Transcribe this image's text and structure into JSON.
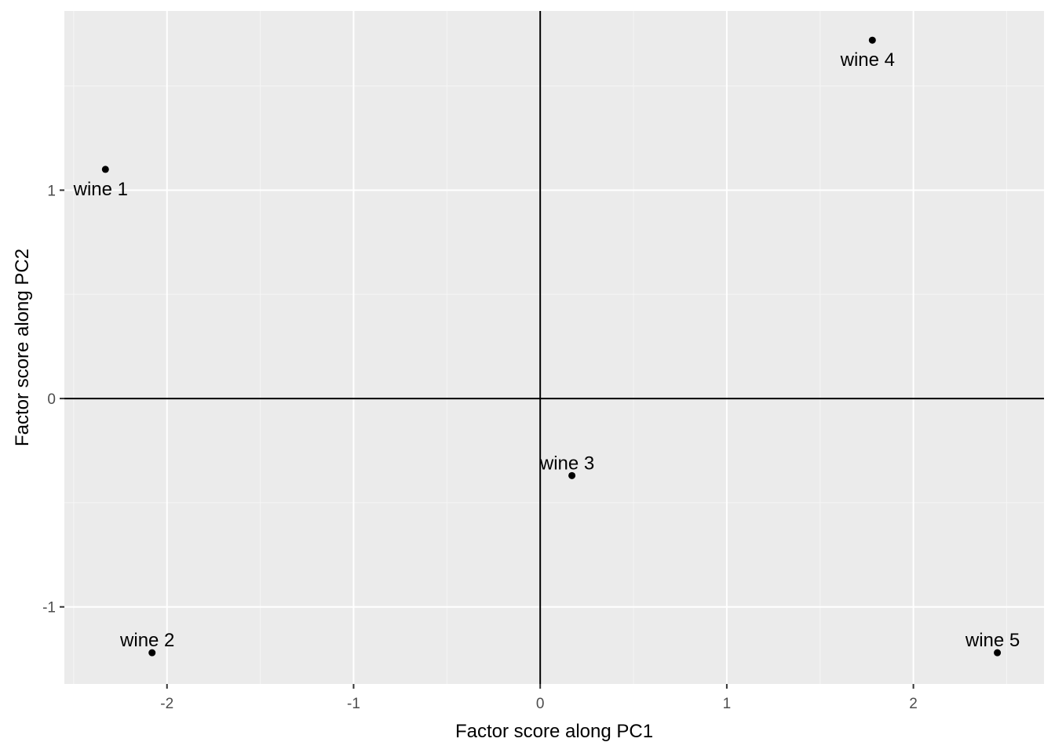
{
  "chart_data": {
    "type": "scatter",
    "title": "",
    "xlabel": "Factor score along PC1",
    "ylabel": "Factor score along PC2",
    "xlim": [
      -2.55,
      2.7
    ],
    "ylim": [
      -1.37,
      1.86
    ],
    "x_ticks": [
      -2,
      -1,
      0,
      1,
      2
    ],
    "y_ticks": [
      -1,
      0,
      1
    ],
    "x_tick_labels": [
      "-2",
      "-1",
      "0",
      "1",
      "2"
    ],
    "y_tick_labels": [
      "-1",
      "0",
      "1"
    ],
    "grid": true,
    "reference_lines": {
      "x": 0,
      "y": 0
    },
    "points": [
      {
        "label": "wine 1",
        "x": -2.33,
        "y": 1.1,
        "label_pos": "below"
      },
      {
        "label": "wine 2",
        "x": -2.08,
        "y": -1.22,
        "label_pos": "above"
      },
      {
        "label": "wine 3",
        "x": 0.17,
        "y": -0.37,
        "label_pos": "above"
      },
      {
        "label": "wine 4",
        "x": 1.78,
        "y": 1.72,
        "label_pos": "below"
      },
      {
        "label": "wine 5",
        "x": 2.45,
        "y": -1.22,
        "label_pos": "above"
      }
    ],
    "colors": {
      "panel": "#ebebeb",
      "grid_major": "#ffffff",
      "grid_minor": "#f5f5f5",
      "points": "#000000",
      "reference": "#000000"
    }
  }
}
